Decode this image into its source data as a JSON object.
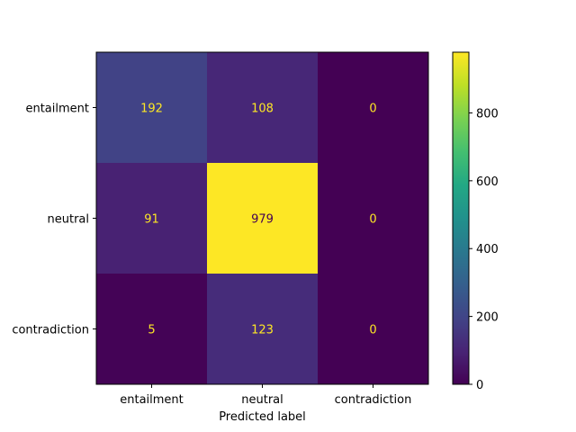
{
  "chart_data": {
    "type": "heatmap",
    "title": "",
    "xlabel": "Predicted label",
    "ylabel": "",
    "x_categories": [
      "entailment",
      "neutral",
      "contradiction"
    ],
    "y_categories": [
      "entailment",
      "neutral",
      "contradiction"
    ],
    "matrix": [
      [
        192,
        108,
        0
      ],
      [
        91,
        979,
        0
      ],
      [
        5,
        123,
        0
      ]
    ],
    "colormap": "viridis",
    "color_range": [
      0,
      979
    ],
    "colorbar_ticks": [
      0,
      200,
      400,
      600,
      800
    ],
    "annotation_colors": {
      "on_dark": "#fde725",
      "on_light": "#440154"
    },
    "grid": false
  }
}
